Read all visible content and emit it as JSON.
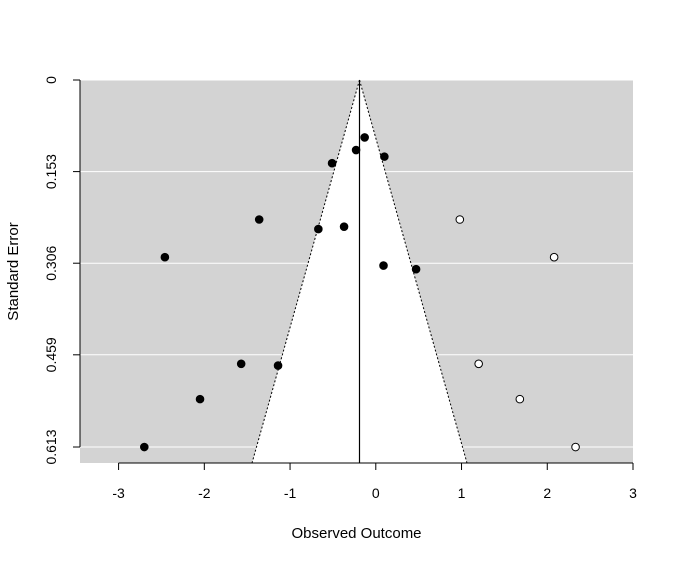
{
  "chart_data": {
    "type": "scatter",
    "subtype": "funnel",
    "title": "",
    "xlabel": "Observed Outcome",
    "ylabel": "Standard Error",
    "xlim": [
      -3.45,
      3.0
    ],
    "ylim": [
      0,
      0.6397
    ],
    "y_reversed": true,
    "x_ticks": [
      -3,
      -2,
      -1,
      0,
      1,
      2,
      3
    ],
    "x_tick_labels": [
      "-3",
      "-2",
      "-1",
      "0",
      "1",
      "2",
      "3"
    ],
    "y_ticks": [
      0,
      0.153,
      0.306,
      0.459,
      0.613
    ],
    "y_tick_labels": [
      "0",
      "0.153",
      "0.306",
      "0.459",
      "0.613"
    ],
    "grid": true,
    "background_color": "#d3d3d3",
    "funnel": {
      "center": -0.19,
      "z": 1.96,
      "max_se": 0.613
    },
    "series": [
      {
        "points": [
          {
            "x": -0.13,
            "y": 0.096
          },
          {
            "x": -0.23,
            "y": 0.117
          },
          {
            "x": 0.1,
            "y": 0.128
          },
          {
            "x": -0.51,
            "y": 0.139
          },
          {
            "x": -1.36,
            "y": 0.233
          },
          {
            "x": -0.67,
            "y": 0.249
          },
          {
            "x": -0.37,
            "y": 0.245
          },
          {
            "x": -2.46,
            "y": 0.296
          },
          {
            "x": 0.09,
            "y": 0.31
          },
          {
            "x": 0.47,
            "y": 0.316
          },
          {
            "x": -1.57,
            "y": 0.474
          },
          {
            "x": -1.14,
            "y": 0.477
          },
          {
            "x": -2.05,
            "y": 0.533
          },
          {
            "x": -2.7,
            "y": 0.613
          }
        ],
        "marker": "filled",
        "color": "#000000"
      },
      {
        "points": [
          {
            "x": 0.98,
            "y": 0.233
          },
          {
            "x": 2.08,
            "y": 0.296
          },
          {
            "x": 1.2,
            "y": 0.474
          },
          {
            "x": 1.68,
            "y": 0.533
          },
          {
            "x": 2.33,
            "y": 0.613
          }
        ],
        "marker": "open",
        "color": "#000000"
      }
    ]
  }
}
